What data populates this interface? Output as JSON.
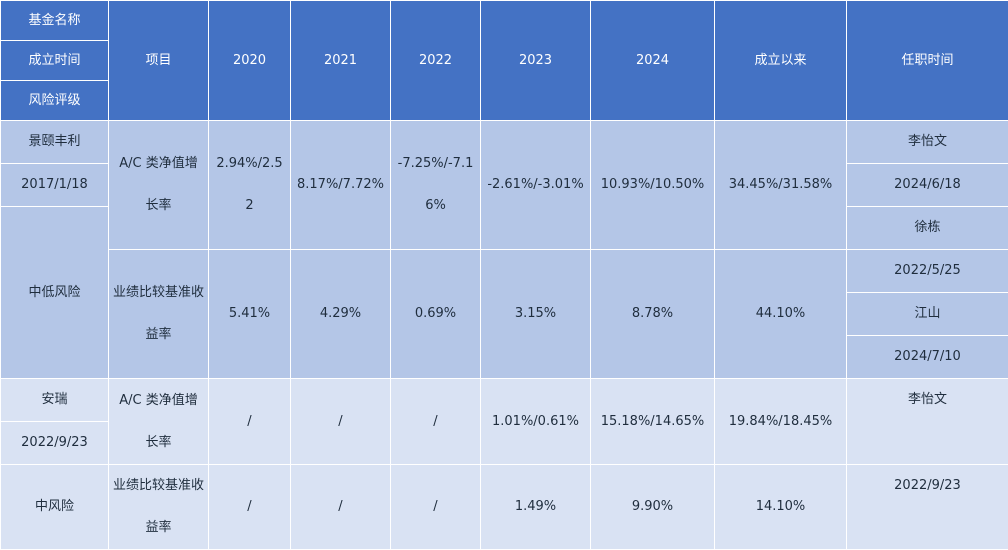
{
  "header": {
    "fund_name": "基金名称",
    "inception_date": "成立时间",
    "risk_rating": "风险评级",
    "item": "项目",
    "y2020": "2020",
    "y2021": "2021",
    "y2022": "2022",
    "y2023": "2023",
    "y2024": "2024",
    "since_inception": "成立以来",
    "tenure": "任职时间"
  },
  "funds": [
    {
      "name": "景颐丰利",
      "date": "2017/1/18",
      "risk": "中低风险",
      "nav_label": "A/C 类净值增长率",
      "nav": {
        "y2020": "2.94%/2.52",
        "y2021": "8.17%/7.72%",
        "y2022": "-7.25%/-7.16%",
        "y2023": "-2.61%/-3.01%",
        "y2024": "10.93%/10.50%",
        "since": "34.45%/31.58%"
      },
      "bench_label": "业绩比较基准收益率",
      "bench": {
        "y2020": "5.41%",
        "y2021": "4.29%",
        "y2022": "0.69%",
        "y2023": "3.15%",
        "y2024": "8.78%",
        "since": "44.10%"
      },
      "managers": [
        {
          "name": "李怡文",
          "date": "2024/6/18"
        },
        {
          "name": "徐栋",
          "date": "2022/5/25"
        },
        {
          "name": "江山",
          "date": "2024/7/10"
        }
      ]
    },
    {
      "name": "安瑞",
      "date": "2022/9/23",
      "risk": "中风险",
      "nav_label": "A/C 类净值增长率",
      "nav": {
        "y2020": "/",
        "y2021": "/",
        "y2022": "/",
        "y2023": "1.01%/0.61%",
        "y2024": "15.18%/14.65%",
        "since": "19.84%/18.45%"
      },
      "bench_label": "业绩比较基准收益率",
      "bench": {
        "y2020": "/",
        "y2021": "/",
        "y2022": "/",
        "y2023": "1.49%",
        "y2024": "9.90%",
        "since": "14.10%"
      },
      "managers": [
        {
          "name": "李怡文",
          "date": "2022/9/23"
        }
      ]
    }
  ]
}
